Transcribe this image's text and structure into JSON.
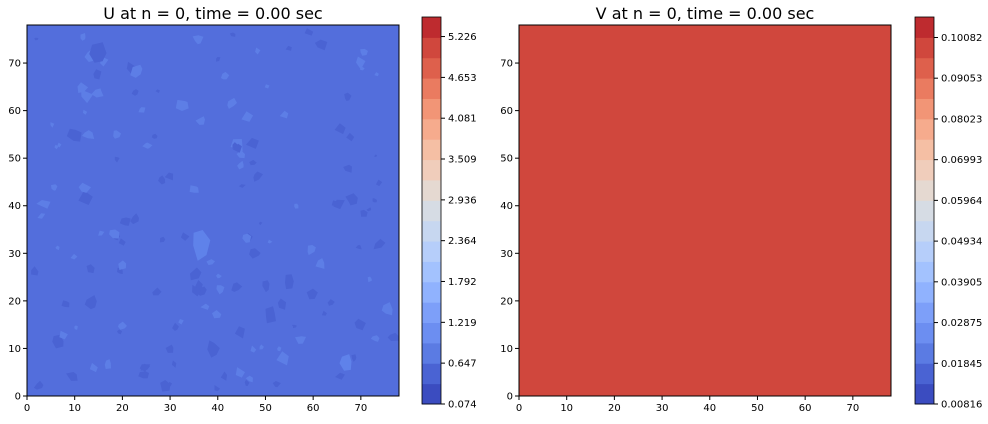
{
  "chart_data": [
    {
      "type": "heatmap",
      "subtype": "filled-contour",
      "title": "U at n = 0, time = 0.00 sec",
      "xlabel": "",
      "ylabel": "",
      "xlim": [
        0,
        78
      ],
      "ylim": [
        0,
        78
      ],
      "x_ticks": [
        0,
        10,
        20,
        30,
        40,
        50,
        60,
        70
      ],
      "y_ticks": [
        0,
        10,
        20,
        30,
        40,
        50,
        60,
        70
      ],
      "background_level_color": "#536EDC",
      "colormap": "coolwarm",
      "colorbar": {
        "vmin": 0.074,
        "vmax": 5.5,
        "tick_labels": [
          "0.074",
          "0.647",
          "1.219",
          "1.792",
          "2.364",
          "2.936",
          "3.509",
          "4.081",
          "4.653",
          "5.226"
        ],
        "tick_values": [
          0.074,
          0.647,
          1.219,
          1.792,
          2.364,
          2.936,
          3.509,
          4.081,
          4.653,
          5.226
        ]
      },
      "field": "mostly uniform low values with small scattered random perturbations slightly above and below"
    },
    {
      "type": "heatmap",
      "subtype": "filled-contour",
      "title": "V at n = 0, time = 0.00 sec",
      "xlabel": "",
      "ylabel": "",
      "xlim": [
        0,
        78
      ],
      "ylim": [
        0,
        78
      ],
      "x_ticks": [
        0,
        10,
        20,
        30,
        40,
        50,
        60,
        70
      ],
      "y_ticks": [
        0,
        10,
        20,
        30,
        40,
        50,
        60,
        70
      ],
      "background_level_color": "#D0473D",
      "colormap": "coolwarm",
      "colorbar": {
        "vmin": 0.00816,
        "vmax": 0.106,
        "tick_labels": [
          "0.00816",
          "0.01845",
          "0.02875",
          "0.03905",
          "0.04934",
          "0.05964",
          "0.06993",
          "0.08023",
          "0.09053",
          "0.10082"
        ],
        "tick_values": [
          0.00816,
          0.01845,
          0.02875,
          0.03905,
          0.04934,
          0.05964,
          0.06993,
          0.08023,
          0.09053,
          0.10082
        ]
      },
      "field": "uniform single level across the whole domain"
    }
  ],
  "colormap_levels": [
    "#3B4CC0",
    "#4A63D3",
    "#5B7BE3",
    "#6C8EF1",
    "#7D9FF9",
    "#90B2FE",
    "#A3C2FE",
    "#B6CEFA",
    "#C7D7F0",
    "#D6DCE4",
    "#E5D9D1",
    "#F0CDBB",
    "#F5BFA4",
    "#F6AB8D",
    "#F29576",
    "#EA7B60",
    "#DE604C",
    "#D0473D",
    "#BE2B2F",
    "#B40426"
  ]
}
